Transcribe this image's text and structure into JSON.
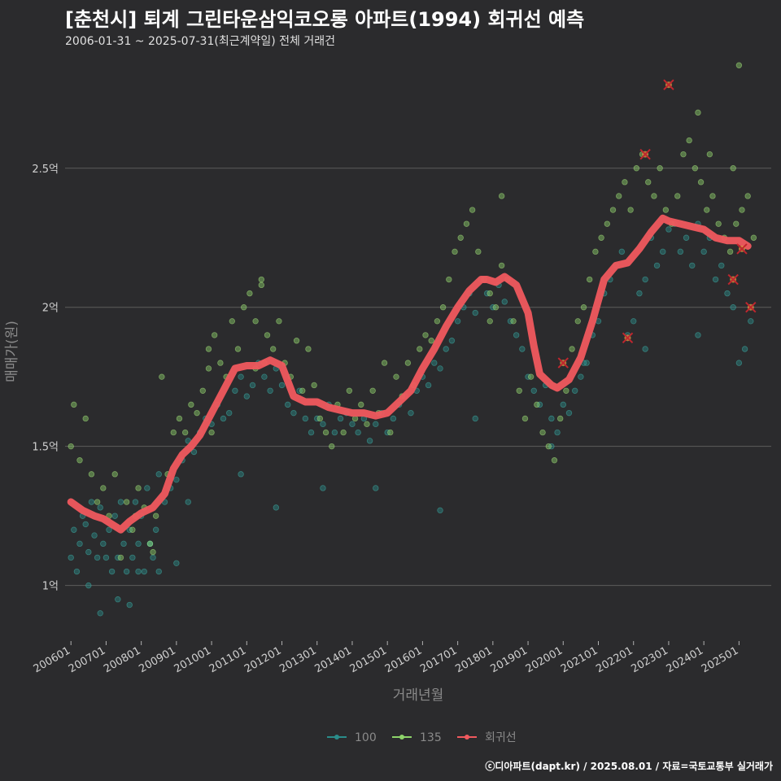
{
  "title": "[춘천시] 퇴계 그린타운삼익코오롱 아파트(1994) 회귀선 예측",
  "subtitle": "2006-01-31 ~ 2025-07-31(최근계약일) 전체 거래건",
  "caption": "ⓒ디아파트(dapt.kr) / 2025.08.01 / 자료=국토교통부 실거래가",
  "colors": {
    "background": "#2b2b2d",
    "grid": "#5c5c5c",
    "series_100": "#2a8c8a",
    "series_135": "#8ed46a",
    "regression": "#f0595e",
    "outlier": "#c0262e"
  },
  "chart_data": {
    "type": "scatter",
    "title": "[춘천시] 퇴계 그린타운삼익코오롱 아파트(1994) 회귀선 예측",
    "xlabel": "거래년월",
    "ylabel": "매매가(원)",
    "x_unit": "months since 2006-01",
    "xlim": [
      -2,
      239
    ],
    "ylim": [
      0.8,
      2.9
    ],
    "y_ticks": [
      {
        "value": 1.0,
        "label": "1억"
      },
      {
        "value": 1.5,
        "label": "1.5억"
      },
      {
        "value": 2.0,
        "label": "2억"
      },
      {
        "value": 2.5,
        "label": "2.5억"
      }
    ],
    "x_ticks": [
      {
        "value": 0,
        "label": "200601"
      },
      {
        "value": 12,
        "label": "200701"
      },
      {
        "value": 24,
        "label": "200801"
      },
      {
        "value": 36,
        "label": "200901"
      },
      {
        "value": 48,
        "label": "201001"
      },
      {
        "value": 60,
        "label": "201101"
      },
      {
        "value": 72,
        "label": "201201"
      },
      {
        "value": 84,
        "label": "201301"
      },
      {
        "value": 96,
        "label": "201401"
      },
      {
        "value": 108,
        "label": "201501"
      },
      {
        "value": 120,
        "label": "201601"
      },
      {
        "value": 132,
        "label": "201701"
      },
      {
        "value": 144,
        "label": "201801"
      },
      {
        "value": 156,
        "label": "201901"
      },
      {
        "value": 168,
        "label": "202001"
      },
      {
        "value": 180,
        "label": "202101"
      },
      {
        "value": 192,
        "label": "202201"
      },
      {
        "value": 204,
        "label": "202301"
      },
      {
        "value": 216,
        "label": "202401"
      },
      {
        "value": 228,
        "label": "202501"
      }
    ],
    "legend": [
      "100",
      "135",
      "회귀선"
    ],
    "legend_position": "bottom",
    "regression": {
      "name": "회귀선",
      "x": [
        0,
        4,
        8,
        11,
        14,
        17,
        20,
        24,
        28,
        32,
        35,
        38,
        41,
        44,
        48,
        52,
        56,
        60,
        64,
        68,
        72,
        76,
        80,
        84,
        88,
        92,
        96,
        100,
        104,
        108,
        112,
        116,
        120,
        124,
        128,
        132,
        136,
        140,
        142,
        145,
        148,
        152,
        156,
        158,
        160,
        164,
        166,
        170,
        174,
        178,
        182,
        186,
        190,
        194,
        198,
        202,
        204,
        208,
        212,
        216,
        220,
        224,
        228,
        231
      ],
      "y": [
        1.3,
        1.27,
        1.25,
        1.24,
        1.22,
        1.2,
        1.23,
        1.26,
        1.28,
        1.33,
        1.42,
        1.47,
        1.5,
        1.54,
        1.62,
        1.7,
        1.78,
        1.79,
        1.79,
        1.81,
        1.79,
        1.68,
        1.66,
        1.66,
        1.64,
        1.63,
        1.62,
        1.62,
        1.61,
        1.62,
        1.66,
        1.7,
        1.78,
        1.85,
        1.93,
        2.0,
        2.06,
        2.1,
        2.1,
        2.09,
        2.11,
        2.08,
        1.98,
        1.86,
        1.76,
        1.72,
        1.71,
        1.74,
        1.82,
        1.95,
        2.1,
        2.15,
        2.16,
        2.21,
        2.27,
        2.32,
        2.31,
        2.3,
        2.29,
        2.28,
        2.25,
        2.24,
        2.24,
        2.22
      ]
    },
    "outliers": {
      "x": [
        204,
        196,
        226,
        229,
        232,
        190,
        168
      ],
      "y": [
        2.8,
        2.55,
        2.1,
        2.21,
        2.0,
        1.89,
        1.8
      ]
    },
    "series": [
      {
        "name": "100",
        "x": [
          0,
          1,
          2,
          3,
          4,
          5,
          6,
          6,
          7,
          8,
          9,
          10,
          10,
          11,
          12,
          13,
          14,
          15,
          16,
          16,
          17,
          18,
          19,
          20,
          21,
          22,
          23,
          24,
          25,
          26,
          27,
          28,
          29,
          30,
          32,
          34,
          36,
          38,
          40,
          42,
          44,
          46,
          48,
          50,
          52,
          54,
          56,
          58,
          60,
          62,
          64,
          66,
          68,
          70,
          72,
          74,
          76,
          78,
          80,
          82,
          84,
          86,
          88,
          90,
          92,
          94,
          96,
          98,
          100,
          102,
          104,
          106,
          108,
          110,
          112,
          114,
          116,
          118,
          120,
          122,
          124,
          126,
          128,
          130,
          132,
          134,
          136,
          138,
          140,
          142,
          144,
          146,
          148,
          150,
          152,
          154,
          156,
          158,
          160,
          162,
          164,
          166,
          168,
          170,
          172,
          174,
          176,
          178,
          180,
          182,
          184,
          186,
          188,
          190,
          192,
          194,
          196,
          198,
          200,
          202,
          204,
          206,
          208,
          210,
          212,
          214,
          216,
          218,
          220,
          222,
          224,
          226,
          228,
          230,
          232,
          20,
          23,
          27,
          30,
          36,
          40,
          58,
          70,
          86,
          104,
          126,
          138,
          164,
          175,
          196,
          214
        ],
        "y": [
          1.1,
          1.2,
          1.05,
          1.15,
          1.25,
          1.22,
          1.0,
          1.12,
          1.3,
          1.18,
          1.1,
          1.28,
          0.9,
          1.15,
          1.1,
          1.2,
          1.05,
          1.25,
          1.1,
          0.95,
          1.3,
          1.15,
          1.05,
          1.2,
          1.1,
          1.3,
          1.15,
          1.25,
          1.05,
          1.35,
          1.15,
          1.1,
          1.2,
          1.4,
          1.3,
          1.35,
          1.38,
          1.45,
          1.52,
          1.48,
          1.55,
          1.6,
          1.58,
          1.65,
          1.6,
          1.62,
          1.7,
          1.75,
          1.68,
          1.72,
          1.8,
          1.75,
          1.7,
          1.78,
          1.72,
          1.65,
          1.62,
          1.7,
          1.6,
          1.55,
          1.6,
          1.58,
          1.65,
          1.55,
          1.6,
          1.62,
          1.58,
          1.55,
          1.6,
          1.52,
          1.58,
          1.62,
          1.55,
          1.6,
          1.65,
          1.68,
          1.62,
          1.7,
          1.75,
          1.72,
          1.8,
          1.78,
          1.85,
          1.88,
          1.95,
          2.0,
          2.05,
          1.98,
          2.1,
          2.05,
          2.0,
          2.08,
          2.02,
          1.95,
          1.9,
          1.85,
          1.75,
          1.7,
          1.65,
          1.72,
          1.6,
          1.55,
          1.65,
          1.62,
          1.7,
          1.75,
          1.8,
          1.9,
          1.95,
          2.05,
          2.1,
          2.15,
          2.2,
          1.9,
          1.95,
          2.05,
          2.1,
          2.25,
          2.15,
          2.2,
          2.28,
          2.3,
          2.2,
          2.25,
          2.15,
          2.3,
          2.2,
          2.25,
          2.1,
          2.15,
          2.05,
          2.0,
          1.8,
          1.85,
          1.95,
          0.93,
          1.05,
          1.15,
          1.05,
          1.08,
          1.3,
          1.4,
          1.28,
          1.35,
          1.35,
          1.27,
          1.6,
          1.5,
          1.8,
          1.85,
          1.9
        ]
      },
      {
        "name": "135",
        "x": [
          0,
          1,
          3,
          5,
          7,
          9,
          11,
          13,
          15,
          17,
          19,
          21,
          23,
          25,
          27,
          29,
          31,
          33,
          35,
          37,
          39,
          41,
          43,
          45,
          47,
          49,
          51,
          53,
          55,
          57,
          59,
          61,
          63,
          65,
          67,
          69,
          71,
          73,
          75,
          77,
          79,
          81,
          83,
          85,
          87,
          89,
          91,
          93,
          95,
          97,
          99,
          101,
          103,
          105,
          107,
          109,
          111,
          113,
          115,
          117,
          119,
          121,
          123,
          125,
          127,
          129,
          131,
          133,
          135,
          137,
          139,
          141,
          143,
          145,
          147,
          149,
          151,
          153,
          155,
          157,
          159,
          161,
          163,
          165,
          167,
          169,
          171,
          173,
          175,
          177,
          179,
          181,
          183,
          185,
          187,
          189,
          191,
          193,
          195,
          197,
          199,
          201,
          203,
          205,
          207,
          209,
          211,
          213,
          215,
          217,
          219,
          221,
          223,
          225,
          227,
          229,
          231,
          233,
          228,
          226,
          214,
          218,
          147,
          143,
          66,
          65,
          63,
          48,
          47,
          28,
          22
        ],
        "y": [
          1.5,
          1.65,
          1.45,
          1.6,
          1.4,
          1.3,
          1.35,
          1.25,
          1.4,
          1.1,
          1.3,
          1.2,
          1.35,
          1.28,
          1.15,
          1.25,
          1.75,
          1.4,
          1.55,
          1.6,
          1.55,
          1.65,
          1.62,
          1.7,
          1.85,
          1.9,
          1.8,
          1.75,
          1.95,
          1.85,
          2.0,
          2.05,
          1.95,
          2.08,
          1.9,
          1.85,
          1.95,
          1.8,
          1.75,
          1.88,
          1.7,
          1.85,
          1.72,
          1.6,
          1.55,
          1.5,
          1.65,
          1.55,
          1.7,
          1.6,
          1.65,
          1.58,
          1.7,
          1.62,
          1.8,
          1.55,
          1.75,
          1.68,
          1.8,
          1.72,
          1.85,
          1.9,
          1.88,
          1.95,
          2.0,
          2.1,
          2.2,
          2.25,
          2.3,
          2.35,
          2.2,
          2.1,
          2.05,
          2.0,
          2.15,
          2.1,
          1.95,
          1.7,
          1.6,
          1.75,
          1.65,
          1.55,
          1.5,
          1.45,
          1.6,
          1.7,
          1.85,
          1.95,
          2.0,
          2.1,
          2.2,
          2.25,
          2.3,
          2.35,
          2.4,
          2.45,
          2.35,
          2.5,
          2.55,
          2.45,
          2.4,
          2.5,
          2.35,
          2.3,
          2.4,
          2.55,
          2.6,
          2.5,
          2.45,
          2.35,
          2.4,
          2.3,
          2.25,
          2.2,
          2.3,
          2.35,
          2.4,
          2.25,
          2.87,
          2.5,
          2.7,
          2.55,
          2.4,
          1.95,
          1.8,
          2.1,
          1.78,
          1.55,
          1.78,
          1.12,
          1.25
        ]
      }
    ]
  }
}
